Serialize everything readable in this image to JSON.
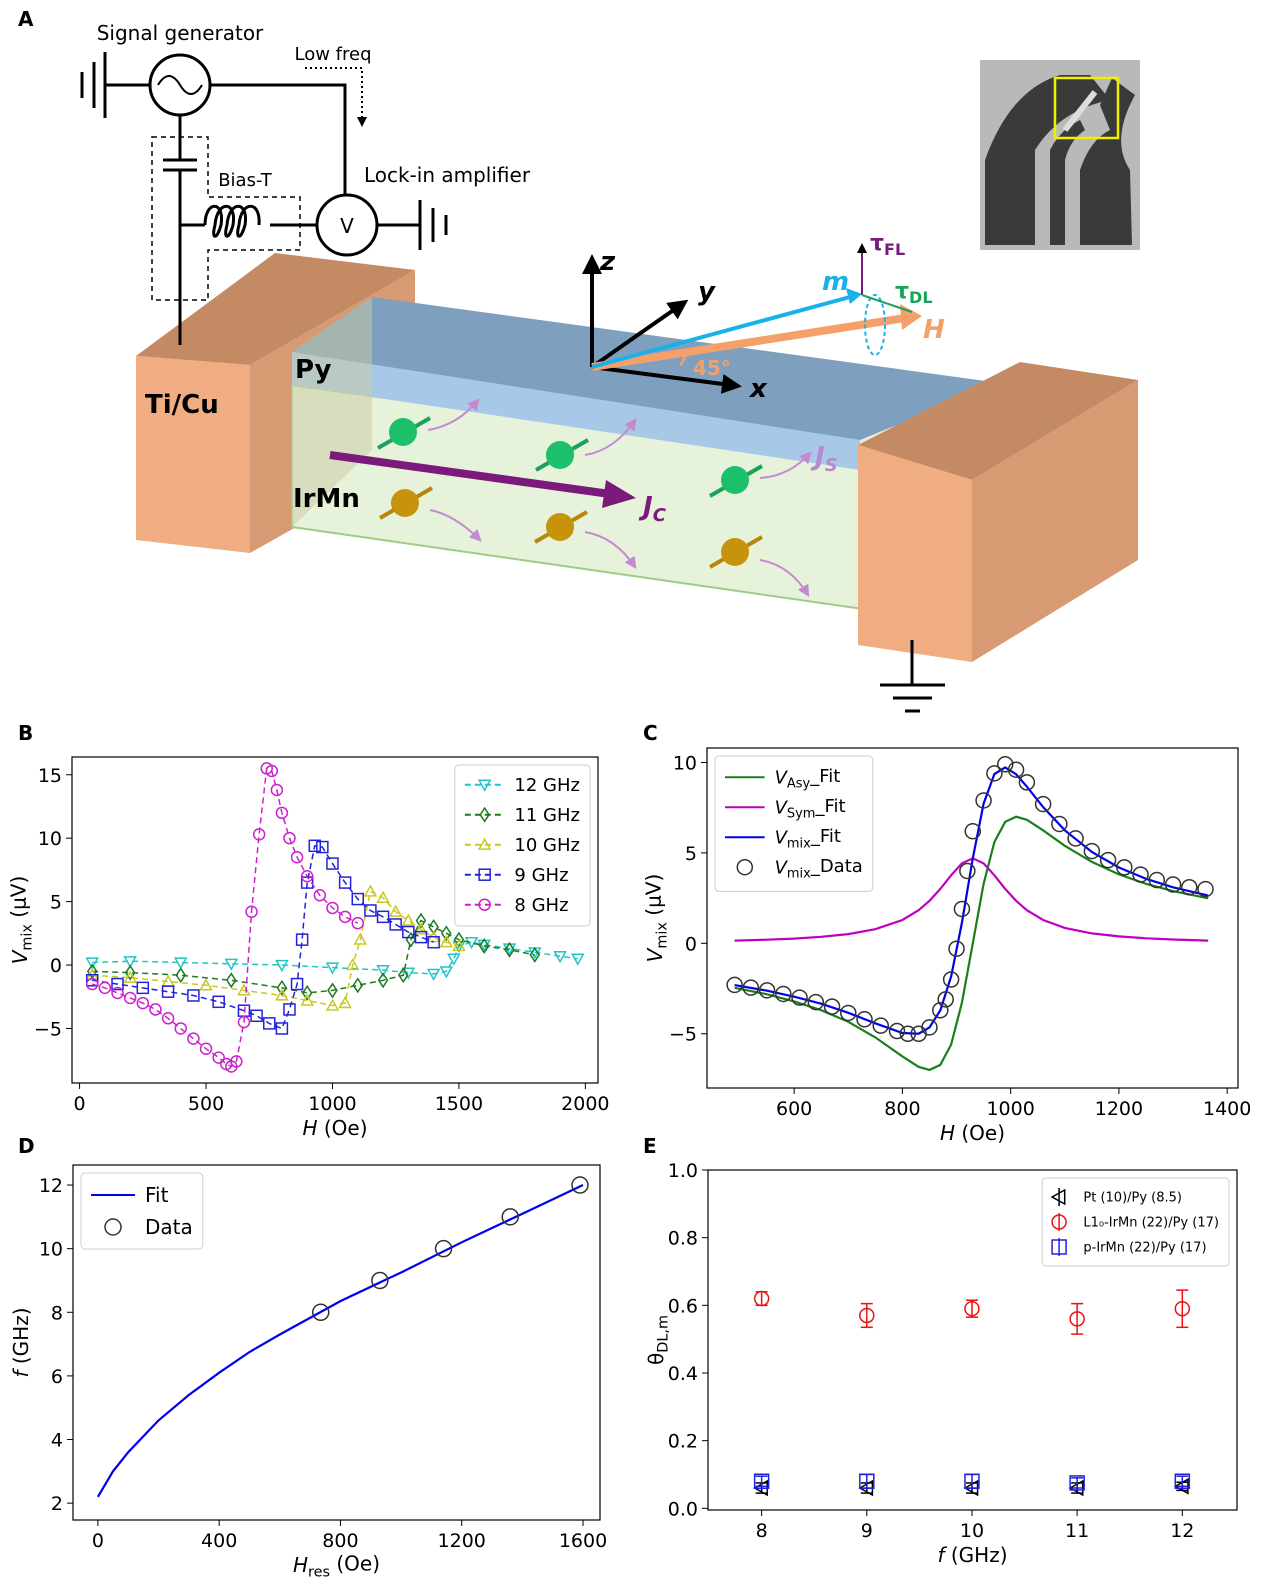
{
  "panel_labels": [
    "A",
    "B",
    "C",
    "D",
    "E"
  ],
  "diagram": {
    "signal_generator": "Signal generator",
    "low_freq": "Low freq",
    "bias_t": "Bias-T",
    "lock_in": "Lock-in amplifier",
    "voltmeter": "V",
    "electrode": "Ti/Cu",
    "py": "Py",
    "irmn": "IrMn",
    "jc": [
      "J",
      "C"
    ],
    "js": [
      "J",
      "S"
    ],
    "axes": [
      "z",
      "y",
      "x"
    ],
    "m": "m",
    "h": "H",
    "tau_fl": [
      "τ",
      "FL"
    ],
    "tau_dl": [
      "τ",
      "DL"
    ],
    "angle": "45°"
  },
  "chart_data": [
    {
      "type": "line",
      "xlabel": [
        "H",
        " (Oe)"
      ],
      "ylabel": [
        "V",
        "mix",
        " (μV)"
      ],
      "xlim": [
        -30,
        2050
      ],
      "xticks": [
        0,
        500,
        1000,
        1500,
        2000
      ],
      "ylim": [
        -9.3,
        16.4
      ],
      "yticks": [
        {
          "value": -5,
          "label": "−5"
        },
        0,
        5,
        10,
        15
      ],
      "legend": "upper right",
      "series": [
        {
          "name": "12 GHz",
          "color": "#22c5c5",
          "marker": "triangle-down",
          "linestyle": "dashed",
          "x": [
            50,
            200,
            400,
            600,
            800,
            1000,
            1200,
            1300,
            1400,
            1450,
            1480,
            1500,
            1550,
            1600,
            1700,
            1800,
            1900,
            1970
          ],
          "values": [
            0.2,
            0.3,
            0.2,
            0.1,
            0,
            -0.2,
            -0.4,
            -0.6,
            -0.7,
            -0.5,
            0.5,
            1.5,
            1.8,
            1.6,
            1.3,
            1.0,
            0.7,
            0.5
          ]
        },
        {
          "name": "11 GHz",
          "color": "#1f7a1f",
          "marker": "diamond",
          "linestyle": "dashed",
          "x": [
            50,
            200,
            400,
            600,
            800,
            900,
            1000,
            1100,
            1200,
            1280,
            1310,
            1350,
            1400,
            1450,
            1500,
            1600,
            1700,
            1800
          ],
          "values": [
            -0.5,
            -0.6,
            -0.8,
            -1.2,
            -1.8,
            -2.2,
            -2.0,
            -1.6,
            -1.2,
            -0.8,
            2,
            3.5,
            3,
            2.5,
            2,
            1.5,
            1.2,
            0.8
          ]
        },
        {
          "name": "10 GHz",
          "color": "#c8c820",
          "marker": "triangle-up",
          "linestyle": "dashed",
          "x": [
            50,
            200,
            350,
            500,
            650,
            800,
            900,
            1000,
            1050,
            1080,
            1110,
            1150,
            1200,
            1250,
            1300,
            1350,
            1400,
            1450,
            1500
          ],
          "values": [
            -0.8,
            -1.0,
            -1.3,
            -1.6,
            -2.0,
            -2.4,
            -2.8,
            -3.2,
            -3.0,
            0,
            2,
            5.8,
            5.3,
            4.2,
            3.5,
            2.8,
            2.2,
            1.8,
            1.5
          ]
        },
        {
          "name": "9 GHz",
          "color": "#2222dd",
          "marker": "square",
          "linestyle": "dashed",
          "x": [
            50,
            150,
            250,
            350,
            450,
            550,
            650,
            700,
            750,
            800,
            830,
            860,
            880,
            900,
            930,
            960,
            1000,
            1050,
            1100,
            1150,
            1200,
            1250,
            1300,
            1350,
            1400
          ],
          "values": [
            -1.2,
            -1.5,
            -1.8,
            -2.1,
            -2.4,
            -2.9,
            -3.6,
            -4.0,
            -4.6,
            -5.0,
            -3.5,
            -1.5,
            2,
            6.5,
            9.4,
            9.3,
            8,
            6.5,
            5.2,
            4.3,
            3.8,
            3.2,
            2.6,
            2.2,
            1.8
          ]
        },
        {
          "name": "8 GHz",
          "color": "#cc22cc",
          "marker": "circle",
          "linestyle": "dashed",
          "x": [
            50,
            100,
            150,
            200,
            250,
            300,
            350,
            400,
            450,
            500,
            550,
            580,
            600,
            620,
            650,
            680,
            710,
            740,
            760,
            780,
            800,
            830,
            860,
            900,
            950,
            1000,
            1050,
            1100
          ],
          "values": [
            -1.5,
            -1.8,
            -2.2,
            -2.6,
            -3.0,
            -3.5,
            -4.2,
            -5.0,
            -5.8,
            -6.6,
            -7.3,
            -7.8,
            -8.0,
            -7.6,
            -4.5,
            4.2,
            10.3,
            15.5,
            15.3,
            13.8,
            12,
            10,
            8.5,
            7,
            5.5,
            4.5,
            3.8,
            3.3
          ]
        }
      ]
    },
    {
      "type": "line",
      "xlabel": [
        "H",
        " (Oe)"
      ],
      "ylabel": [
        "V",
        "mix",
        " (μV)"
      ],
      "xlim": [
        439,
        1420
      ],
      "xticks": [
        600,
        800,
        1000,
        1200,
        1400
      ],
      "ylim": [
        -8.0,
        10.8
      ],
      "yticks": [
        {
          "value": -5,
          "label": "−5"
        },
        0,
        5,
        10
      ],
      "legend": "upper left",
      "series": [
        {
          "name": [
            "V",
            "Asy",
            "_Fit"
          ],
          "color": "#1a7f1a",
          "linestyle": "solid",
          "x": [
            490,
            550,
            600,
            650,
            700,
            750,
            800,
            830,
            850,
            870,
            890,
            910,
            930,
            950,
            970,
            990,
            1010,
            1030,
            1060,
            1100,
            1150,
            1200,
            1250,
            1300,
            1365
          ],
          "values": [
            -2.46,
            -2.82,
            -3.21,
            -3.7,
            -4.34,
            -5.2,
            -6.25,
            -6.83,
            -7.0,
            -6.72,
            -5.6,
            -3.29,
            0,
            3.29,
            5.6,
            6.72,
            7.0,
            6.83,
            6.25,
            5.39,
            4.5,
            3.81,
            3.29,
            2.89,
            2.49
          ]
        },
        {
          "name": [
            "V",
            "Sym",
            "_Fit"
          ],
          "color": "#c000c0",
          "linestyle": "solid",
          "x": [
            490,
            550,
            600,
            650,
            700,
            750,
            800,
            830,
            850,
            870,
            890,
            910,
            930,
            950,
            970,
            990,
            1010,
            1030,
            1060,
            1100,
            1150,
            1200,
            1250,
            1300,
            1365
          ],
          "values": [
            0.15,
            0.2,
            0.26,
            0.36,
            0.51,
            0.78,
            1.29,
            1.83,
            2.35,
            3.01,
            3.76,
            4.42,
            4.7,
            4.42,
            3.76,
            3.01,
            2.35,
            1.83,
            1.29,
            0.85,
            0.55,
            0.38,
            0.28,
            0.21,
            0.15
          ]
        },
        {
          "name": [
            "V",
            "mix",
            "_Fit"
          ],
          "color": "#0000ee",
          "linestyle": "solid",
          "x": [
            490,
            550,
            600,
            650,
            700,
            750,
            800,
            830,
            850,
            870,
            890,
            910,
            930,
            950,
            970,
            990,
            1010,
            1030,
            1060,
            1100,
            1150,
            1200,
            1250,
            1300,
            1365
          ],
          "values": [
            -2.31,
            -2.62,
            -2.95,
            -3.34,
            -3.84,
            -4.42,
            -4.96,
            -5.0,
            -4.65,
            -3.71,
            -1.84,
            1.13,
            4.7,
            7.72,
            9.36,
            9.73,
            9.35,
            8.66,
            7.54,
            6.25,
            5.05,
            4.19,
            3.57,
            3.1,
            2.64
          ]
        },
        {
          "name": [
            "V",
            "mix",
            "_Data"
          ],
          "color": "#333333",
          "marker": "circle",
          "linestyle": "none",
          "x": [
            490,
            520,
            550,
            580,
            610,
            640,
            670,
            700,
            730,
            760,
            790,
            810,
            830,
            850,
            870,
            880,
            890,
            900,
            910,
            920,
            930,
            950,
            970,
            990,
            1010,
            1030,
            1060,
            1090,
            1120,
            1150,
            1180,
            1210,
            1240,
            1270,
            1300,
            1330,
            1360
          ],
          "values": [
            -2.3,
            -2.45,
            -2.6,
            -2.8,
            -3.0,
            -3.25,
            -3.5,
            -3.85,
            -4.2,
            -4.55,
            -4.85,
            -5.0,
            -5.0,
            -4.65,
            -3.7,
            -3.1,
            -2.0,
            -0.3,
            1.9,
            4.0,
            6.2,
            7.9,
            9.4,
            9.9,
            9.6,
            8.9,
            7.7,
            6.6,
            5.8,
            5.1,
            4.6,
            4.2,
            3.8,
            3.5,
            3.25,
            3.1,
            3.0
          ]
        }
      ]
    },
    {
      "type": "line",
      "xlabel": [
        "H",
        "res",
        " (Oe)"
      ],
      "ylabel": [
        "f",
        " (GHz)"
      ],
      "xlim": [
        -82,
        1656
      ],
      "xticks": [
        0,
        400,
        800,
        1200,
        1600
      ],
      "ylim": [
        1.47,
        12.63
      ],
      "yticks": [
        2,
        4,
        6,
        8,
        10,
        12
      ],
      "legend": "upper left",
      "series": [
        {
          "name": "Fit",
          "color": "#0000ee",
          "linestyle": "solid",
          "x": [
            0,
            50,
            100,
            200,
            300,
            400,
            500,
            600,
            800,
            1000,
            1200,
            1400,
            1600
          ],
          "values": [
            2.2,
            3.0,
            3.6,
            4.6,
            5.4,
            6.1,
            6.75,
            7.3,
            8.35,
            9.25,
            10.2,
            11.1,
            12.0
          ]
        },
        {
          "name": "Data",
          "color": "#333333",
          "marker": "circle",
          "linestyle": "none",
          "x": [
            735,
            930,
            1140,
            1360,
            1590
          ],
          "values": [
            8,
            9,
            10,
            11,
            12
          ]
        }
      ]
    },
    {
      "type": "errorbar",
      "xlabel": [
        "f",
        " (GHz)"
      ],
      "ylabel": [
        "θ",
        "DL,m"
      ],
      "xlim": [
        7.49,
        12.52
      ],
      "xticks": [
        8,
        9,
        10,
        11,
        12
      ],
      "ylim": [
        -0.005,
        1.0
      ],
      "yticks": [
        {
          "value": 0,
          "label": "0.0"
        },
        0.2,
        0.4,
        0.6,
        0.8,
        {
          "value": 1,
          "label": "1.0"
        }
      ],
      "legend": "upper right",
      "series": [
        {
          "name": "Pt (10)/Py (8.5)",
          "color": "#000000",
          "marker": "triangle-left",
          "x": [
            8,
            9,
            10,
            11,
            12
          ],
          "values": [
            0.06,
            0.06,
            0.06,
            0.06,
            0.065
          ],
          "errors": [
            0.015,
            0.015,
            0.015,
            0.015,
            0.012
          ]
        },
        {
          "name": "L1₀-IrMn (22)/Py (17)",
          "color": "#ee1111",
          "marker": "circle",
          "x": [
            8,
            9,
            10,
            11,
            12
          ],
          "values": [
            0.62,
            0.57,
            0.59,
            0.56,
            0.59
          ],
          "errors": [
            0.02,
            0.035,
            0.025,
            0.045,
            0.055
          ]
        },
        {
          "name": "p-IrMn (22)/Py (17)",
          "color": "#2222dd",
          "marker": "square",
          "x": [
            8,
            9,
            10,
            11,
            12
          ],
          "values": [
            0.08,
            0.08,
            0.08,
            0.075,
            0.08
          ],
          "errors": [
            0.015,
            0.02,
            0.02,
            0.015,
            0.015
          ]
        }
      ]
    }
  ]
}
